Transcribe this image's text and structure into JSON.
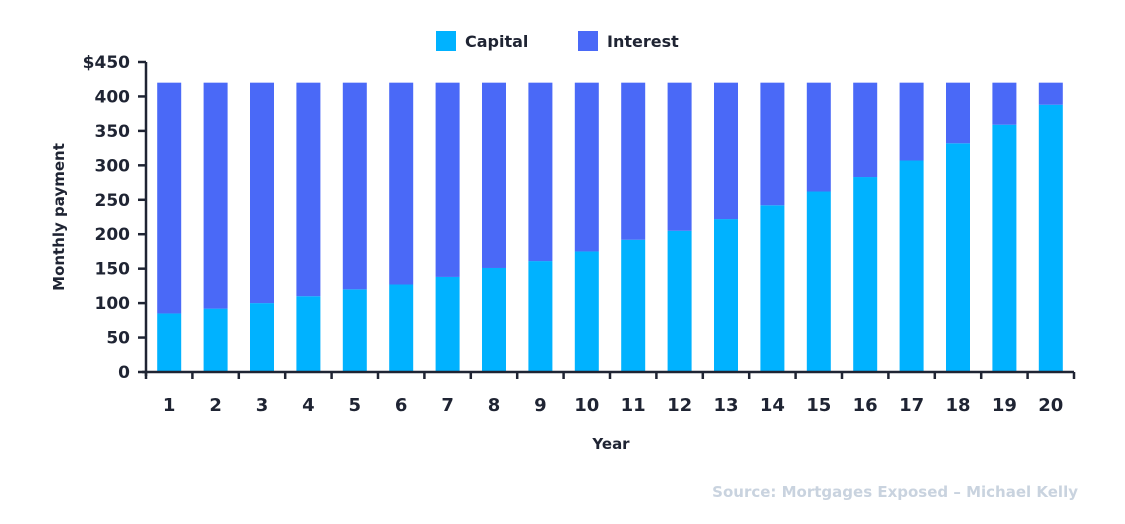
{
  "chart_data": {
    "type": "bar",
    "stacked": true,
    "categories": [
      "1",
      "2",
      "3",
      "4",
      "5",
      "6",
      "7",
      "8",
      "9",
      "10",
      "11",
      "12",
      "13",
      "14",
      "15",
      "16",
      "17",
      "18",
      "19",
      "20"
    ],
    "series": [
      {
        "name": "Capital",
        "color": "#00b2ff",
        "values": [
          85,
          92,
          100,
          110,
          120,
          127,
          138,
          151,
          161,
          175,
          192,
          205,
          222,
          242,
          262,
          283,
          307,
          332,
          359,
          388
        ]
      },
      {
        "name": "Interest",
        "color": "#4a69f7",
        "values": [
          335,
          328,
          320,
          310,
          300,
          293,
          282,
          269,
          259,
          245,
          228,
          215,
          198,
          178,
          158,
          137,
          113,
          88,
          61,
          32
        ]
      }
    ],
    "y_ticks": [
      "0",
      "50",
      "100",
      "150",
      "200",
      "250",
      "300",
      "350",
      "400",
      "$450"
    ],
    "ylim": [
      0,
      450
    ],
    "xlabel": "Year",
    "ylabel": "Monthly payment",
    "legend_position": "top-center",
    "source": "Source: Mortgages Exposed – Michael Kelly",
    "colors": {
      "axis": "#1f2433",
      "source_text": "#c9d3df"
    }
  }
}
